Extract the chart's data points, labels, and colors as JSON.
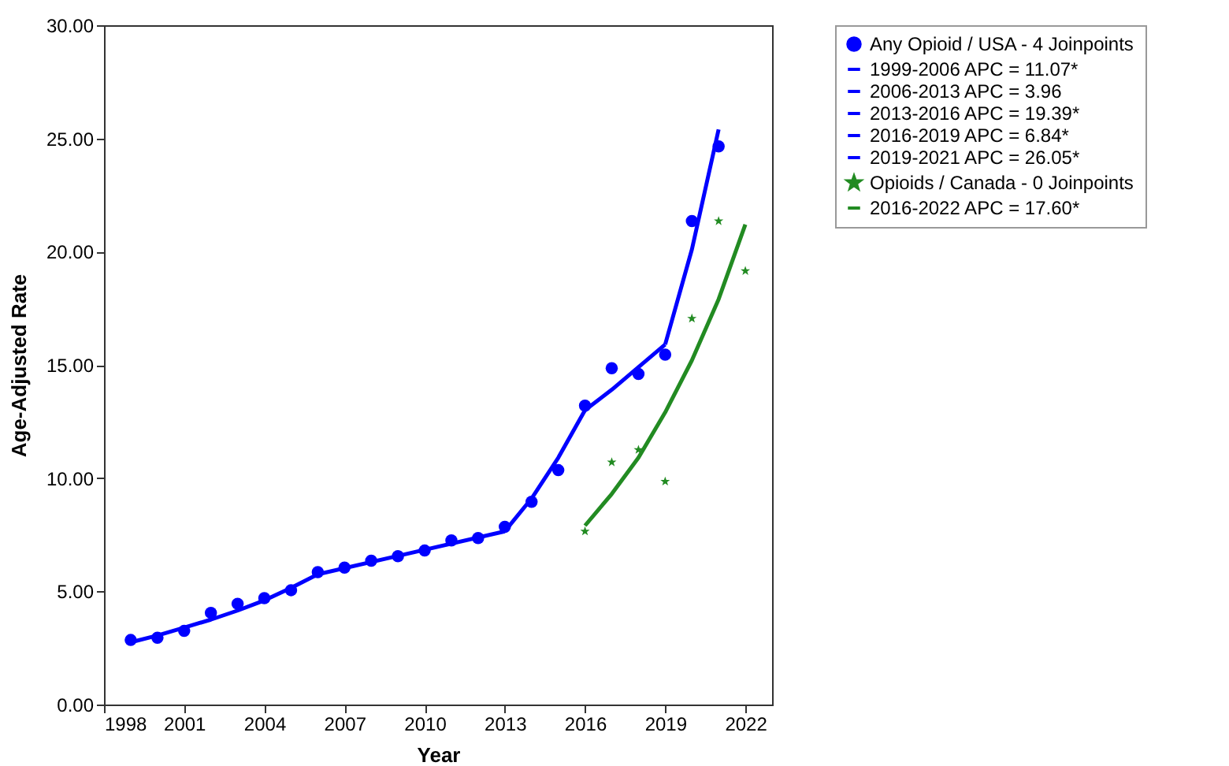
{
  "chart_data": {
    "type": "line",
    "xlabel": "Year",
    "ylabel": "Age-Adjusted Rate",
    "xlim": [
      1998,
      2023
    ],
    "xticks": [
      1998,
      2001,
      2004,
      2007,
      2010,
      2013,
      2016,
      2019,
      2022
    ],
    "ylim": [
      0,
      30
    ],
    "yticks": [
      {
        "value": 0,
        "label": "0.00"
      },
      {
        "value": 5,
        "label": "5.00"
      },
      {
        "value": 10,
        "label": "10.00"
      },
      {
        "value": 15,
        "label": "15.00"
      },
      {
        "value": 20,
        "label": "20.00"
      },
      {
        "value": 25,
        "label": "25.00"
      },
      {
        "value": 30,
        "label": "30.00"
      }
    ],
    "grid": false,
    "legend": "top right",
    "series": [
      {
        "name": "Any Opioid / USA - 4 Joinpoints",
        "type": "scatter",
        "marker": "circle",
        "color": "#0000ff",
        "x": [
          1999,
          2000,
          2001,
          2002,
          2003,
          2004,
          2005,
          2006,
          2007,
          2008,
          2009,
          2010,
          2011,
          2012,
          2013,
          2014,
          2015,
          2016,
          2017,
          2018,
          2019,
          2020,
          2021
        ],
        "values": [
          2.85,
          2.95,
          3.25,
          4.05,
          4.45,
          4.7,
          5.05,
          5.85,
          6.05,
          6.35,
          6.55,
          6.8,
          7.25,
          7.35,
          7.85,
          8.95,
          10.35,
          13.2,
          14.85,
          14.6,
          15.45,
          21.35,
          24.65
        ]
      },
      {
        "name": "1999-2006 APC  = 11.07*",
        "color": "#0000ff",
        "x": [
          1999,
          2000,
          2001,
          2002,
          2003,
          2004,
          2005,
          2006
        ],
        "values": [
          2.75,
          3.05,
          3.4,
          3.75,
          4.15,
          4.6,
          5.15,
          5.75
        ]
      },
      {
        "name": "2006-2013 APC  =  3.96",
        "color": "#0000ff",
        "x": [
          2006,
          2013
        ],
        "values": [
          5.75,
          7.65
        ]
      },
      {
        "name": "2013-2016 APC  = 19.39*",
        "color": "#0000ff",
        "x": [
          2013,
          2014,
          2015,
          2016
        ],
        "values": [
          7.65,
          9.1,
          10.9,
          13.0
        ]
      },
      {
        "name": "2016-2019 APC  =  6.84*",
        "color": "#0000ff",
        "x": [
          2016,
          2017,
          2018,
          2019
        ],
        "values": [
          13.0,
          13.9,
          14.9,
          15.9
        ]
      },
      {
        "name": "2019-2021 APC  = 26.05*",
        "color": "#0000ff",
        "x": [
          2019,
          2020,
          2021
        ],
        "values": [
          15.9,
          20.1,
          25.4
        ]
      },
      {
        "name": "Opioids / Canada - 0 Joinpoints",
        "type": "scatter",
        "marker": "star",
        "color": "#228b22",
        "x": [
          2016,
          2017,
          2018,
          2019,
          2020,
          2021,
          2022
        ],
        "values": [
          7.65,
          10.7,
          11.25,
          9.85,
          17.05,
          21.35,
          19.15
        ]
      },
      {
        "name": "2016-2022 APC  = 17.60*",
        "color": "#228b22",
        "x": [
          2016,
          2017,
          2018,
          2019,
          2020,
          2021,
          2022
        ],
        "values": [
          7.9,
          9.3,
          10.9,
          12.9,
          15.2,
          17.9,
          21.2
        ]
      }
    ]
  }
}
